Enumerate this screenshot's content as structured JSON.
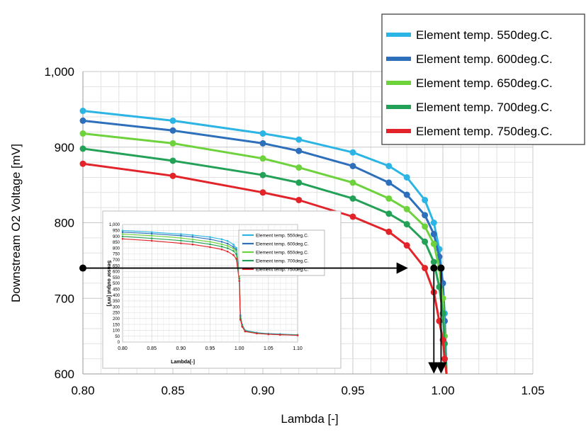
{
  "chart_data": [
    {
      "type": "line",
      "xlabel": "Lambda [-]",
      "ylabel": "Downstream O2 Voltage [mV]",
      "xlim": [
        0.8,
        1.05
      ],
      "ylim": [
        600,
        1000
      ],
      "xticks": [
        "0.80",
        "0.85",
        "0.90",
        "0.95",
        "1.00",
        "1.05"
      ],
      "yticks": [
        "600",
        "700",
        "800",
        "900",
        "1,000"
      ],
      "grid": true,
      "legend_position": "top-right",
      "series": [
        {
          "name": "Element temp. 550deg.C.",
          "color": "#2cb5e4",
          "points": [
            [
              0.8,
              948
            ],
            [
              0.85,
              935
            ],
            [
              0.9,
              918
            ],
            [
              0.92,
              910
            ],
            [
              0.95,
              893
            ],
            [
              0.97,
              875
            ],
            [
              0.98,
              860
            ],
            [
              0.99,
              830
            ],
            [
              0.995,
              800
            ],
            [
              0.998,
              765
            ],
            [
              1.0,
              720
            ],
            [
              1.001,
              680
            ],
            [
              1.002,
              600
            ]
          ]
        },
        {
          "name": "Element temp. 600deg.C.",
          "color": "#2d6fba",
          "points": [
            [
              0.8,
              935
            ],
            [
              0.85,
              922
            ],
            [
              0.9,
              905
            ],
            [
              0.92,
              895
            ],
            [
              0.95,
              875
            ],
            [
              0.97,
              853
            ],
            [
              0.98,
              837
            ],
            [
              0.99,
              810
            ],
            [
              0.995,
              785
            ],
            [
              0.998,
              755
            ],
            [
              1.0,
              720
            ],
            [
              1.001,
              670
            ],
            [
              1.002,
              600
            ]
          ]
        },
        {
          "name": "Element temp. 650deg.C.",
          "color": "#6ed23d",
          "points": [
            [
              0.8,
              918
            ],
            [
              0.85,
              905
            ],
            [
              0.9,
              885
            ],
            [
              0.92,
              873
            ],
            [
              0.95,
              853
            ],
            [
              0.97,
              832
            ],
            [
              0.98,
              818
            ],
            [
              0.99,
              795
            ],
            [
              0.995,
              772
            ],
            [
              0.998,
              740
            ],
            [
              1.0,
              700
            ],
            [
              1.001,
              650
            ],
            [
              1.002,
              600
            ]
          ]
        },
        {
          "name": "Element temp. 700deg.C.",
          "color": "#23a156",
          "points": [
            [
              0.8,
              898
            ],
            [
              0.85,
              882
            ],
            [
              0.9,
              863
            ],
            [
              0.92,
              853
            ],
            [
              0.95,
              832
            ],
            [
              0.97,
              812
            ],
            [
              0.98,
              798
            ],
            [
              0.99,
              775
            ],
            [
              0.995,
              748
            ],
            [
              0.998,
              715
            ],
            [
              1.0,
              680
            ],
            [
              1.001,
              640
            ],
            [
              1.002,
              600
            ]
          ]
        },
        {
          "name": "Element temp. 750deg.C.",
          "color": "#e2242a",
          "points": [
            [
              0.8,
              878
            ],
            [
              0.85,
              862
            ],
            [
              0.9,
              840
            ],
            [
              0.92,
              830
            ],
            [
              0.95,
              808
            ],
            [
              0.97,
              788
            ],
            [
              0.98,
              770
            ],
            [
              0.99,
              740
            ],
            [
              0.995,
              708
            ],
            [
              0.998,
              670
            ],
            [
              1.0,
              645
            ],
            [
              1.001,
              620
            ],
            [
              1.002,
              600
            ]
          ]
        }
      ],
      "annotations": [
        {
          "type": "arrow",
          "from": [
            0.8,
            740
          ],
          "to": [
            0.98,
            740
          ]
        },
        {
          "type": "dot",
          "at": [
            0.8,
            740
          ]
        },
        {
          "type": "dot",
          "at": [
            0.995,
            740
          ]
        },
        {
          "type": "dot",
          "at": [
            0.999,
            740
          ]
        },
        {
          "type": "arrow",
          "from": [
            0.995,
            740
          ],
          "to": [
            0.995,
            600
          ]
        },
        {
          "type": "arrow",
          "from": [
            0.999,
            740
          ],
          "to": [
            0.999,
            600
          ]
        }
      ]
    },
    {
      "type": "line",
      "xlabel": "Lambda[-]",
      "ylabel": "Sensor output [mV]",
      "xlim": [
        0.8,
        1.1
      ],
      "ylim": [
        0,
        1000
      ],
      "xticks": [
        "0.80",
        "0.85",
        "0.90",
        "0.95",
        "1.00",
        "1.05",
        "1.10"
      ],
      "yticks": [
        "0",
        "50",
        "100",
        "150",
        "200",
        "250",
        "300",
        "350",
        "400",
        "450",
        "500",
        "550",
        "600",
        "650",
        "700",
        "750",
        "800",
        "850",
        "900",
        "950",
        "1,000"
      ],
      "grid": true,
      "legend_position": "right",
      "series": [
        {
          "name": "Element temp. 550deg.C.",
          "color": "#2cb5e4",
          "points": [
            [
              0.8,
              948
            ],
            [
              0.85,
              935
            ],
            [
              0.9,
              918
            ],
            [
              0.92,
              910
            ],
            [
              0.95,
              893
            ],
            [
              0.97,
              875
            ],
            [
              0.98,
              860
            ],
            [
              0.99,
              830
            ],
            [
              0.995,
              800
            ],
            [
              1.0,
              600
            ],
            [
              1.002,
              230
            ],
            [
              1.005,
              150
            ],
            [
              1.01,
              100
            ],
            [
              1.03,
              80
            ],
            [
              1.05,
              72
            ],
            [
              1.07,
              68
            ],
            [
              1.1,
              62
            ]
          ]
        },
        {
          "name": "Element temp. 600deg.C.",
          "color": "#2d6fba",
          "points": [
            [
              0.8,
              935
            ],
            [
              0.85,
              922
            ],
            [
              0.9,
              905
            ],
            [
              0.92,
              895
            ],
            [
              0.95,
              875
            ],
            [
              0.97,
              853
            ],
            [
              0.98,
              837
            ],
            [
              0.99,
              810
            ],
            [
              0.995,
              785
            ],
            [
              1.0,
              580
            ],
            [
              1.002,
              220
            ],
            [
              1.005,
              145
            ],
            [
              1.01,
              97
            ],
            [
              1.03,
              78
            ],
            [
              1.05,
              70
            ],
            [
              1.07,
              66
            ],
            [
              1.1,
              60
            ]
          ]
        },
        {
          "name": "Element temp. 650deg.C.",
          "color": "#6ed23d",
          "points": [
            [
              0.8,
              918
            ],
            [
              0.85,
              905
            ],
            [
              0.9,
              885
            ],
            [
              0.92,
              873
            ],
            [
              0.95,
              853
            ],
            [
              0.97,
              832
            ],
            [
              0.98,
              818
            ],
            [
              0.99,
              795
            ],
            [
              0.995,
              772
            ],
            [
              1.0,
              560
            ],
            [
              1.002,
              210
            ],
            [
              1.005,
              140
            ],
            [
              1.01,
              94
            ],
            [
              1.03,
              76
            ],
            [
              1.05,
              68
            ],
            [
              1.07,
              64
            ],
            [
              1.1,
              59
            ]
          ]
        },
        {
          "name": "Element temp. 700deg.C.",
          "color": "#23a156",
          "points": [
            [
              0.8,
              898
            ],
            [
              0.85,
              882
            ],
            [
              0.9,
              863
            ],
            [
              0.92,
              853
            ],
            [
              0.95,
              832
            ],
            [
              0.97,
              812
            ],
            [
              0.98,
              798
            ],
            [
              0.99,
              775
            ],
            [
              0.995,
              748
            ],
            [
              1.0,
              540
            ],
            [
              1.002,
              200
            ],
            [
              1.005,
              135
            ],
            [
              1.01,
              92
            ],
            [
              1.03,
              75
            ],
            [
              1.05,
              67
            ],
            [
              1.07,
              63
            ],
            [
              1.1,
              58
            ]
          ]
        },
        {
          "name": "Element temp. 750deg.C.",
          "color": "#e2242a",
          "points": [
            [
              0.8,
              878
            ],
            [
              0.85,
              862
            ],
            [
              0.9,
              840
            ],
            [
              0.92,
              830
            ],
            [
              0.95,
              808
            ],
            [
              0.97,
              788
            ],
            [
              0.98,
              770
            ],
            [
              0.99,
              740
            ],
            [
              0.995,
              708
            ],
            [
              1.0,
              520
            ],
            [
              1.002,
              190
            ],
            [
              1.005,
              130
            ],
            [
              1.01,
              90
            ],
            [
              1.03,
              73
            ],
            [
              1.05,
              66
            ],
            [
              1.07,
              62
            ],
            [
              1.1,
              57
            ]
          ]
        }
      ]
    }
  ]
}
